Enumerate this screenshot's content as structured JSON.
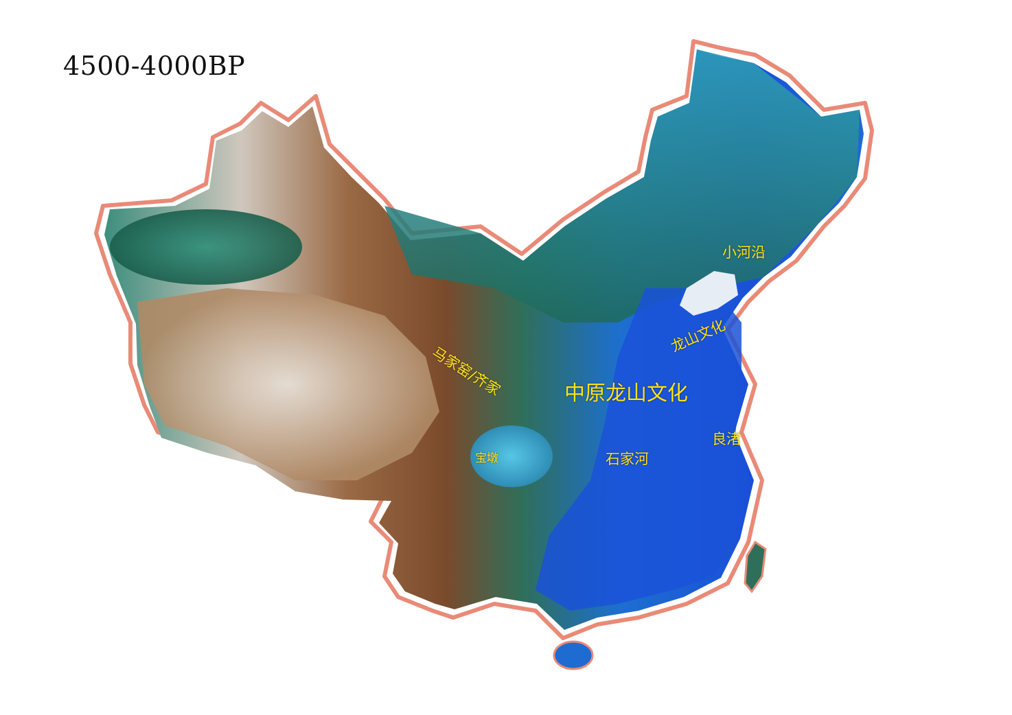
{
  "map": {
    "period_title": "4500-4000BP",
    "colors": {
      "border": "#e98a77",
      "label": "#ffe21a",
      "lowland": "#1f5fd8",
      "plateau": "#a5714a",
      "high": "#e6e0d8"
    },
    "labels": {
      "xiaoheyan": "小河沿",
      "longshan": "龙山文化",
      "majiayao_qijia": "马家窑/齐家",
      "zhongyuan_longshan": "中原龙山文化",
      "liangzhu": "良渚",
      "baodun": "宝墩",
      "shijiahe": "石家河"
    }
  }
}
